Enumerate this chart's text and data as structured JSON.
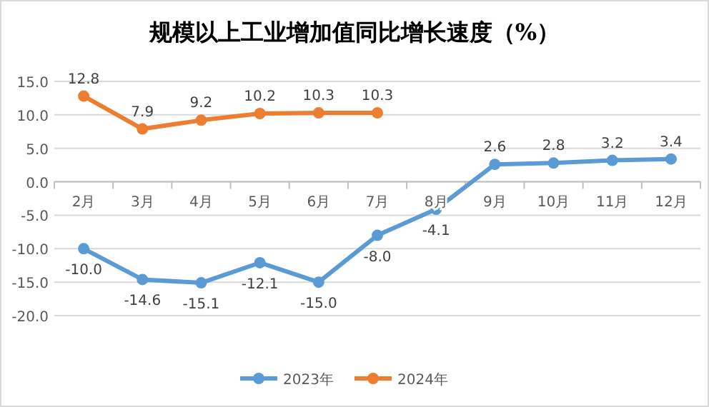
{
  "chart_data": {
    "type": "line",
    "title": "规模以上工业增加值同比增长速度（%）",
    "categories": [
      "2月",
      "3月",
      "4月",
      "5月",
      "6月",
      "7月",
      "8月",
      "9月",
      "10月",
      "11月",
      "12月"
    ],
    "series": [
      {
        "name": "2023年",
        "color": "#5b9bd5",
        "values": [
          -10.0,
          -14.6,
          -15.1,
          -12.1,
          -15.0,
          -8.0,
          -4.1,
          2.6,
          2.8,
          3.2,
          3.4
        ],
        "value_labels": [
          "-10.0",
          "-14.6",
          "-15.1",
          "-12.1",
          "-15.0",
          "-8.0",
          "-4.1",
          "2.6",
          "2.8",
          "3.2",
          "3.4"
        ]
      },
      {
        "name": "2024年",
        "color": "#ed7d31",
        "values": [
          12.8,
          7.9,
          9.2,
          10.2,
          10.3,
          10.3,
          null,
          null,
          null,
          null,
          null
        ],
        "value_labels": [
          "12.8",
          "7.9",
          "9.2",
          "10.2",
          "10.3",
          "10.3",
          null,
          null,
          null,
          null,
          null
        ]
      }
    ],
    "ylim": [
      -20,
      15
    ],
    "yticks": [
      {
        "value": -20,
        "label": "-20.0"
      },
      {
        "value": -15,
        "label": "-15.0"
      },
      {
        "value": -10,
        "label": "-10.0"
      },
      {
        "value": -5,
        "label": "-5.0"
      },
      {
        "value": 0,
        "label": "0.0"
      },
      {
        "value": 5,
        "label": "5.0"
      },
      {
        "value": 10,
        "label": "10.0"
      },
      {
        "value": 15,
        "label": "15.0"
      }
    ],
    "grid": "y",
    "legend": "bottom",
    "marker": "circle",
    "line_style": "solid"
  }
}
